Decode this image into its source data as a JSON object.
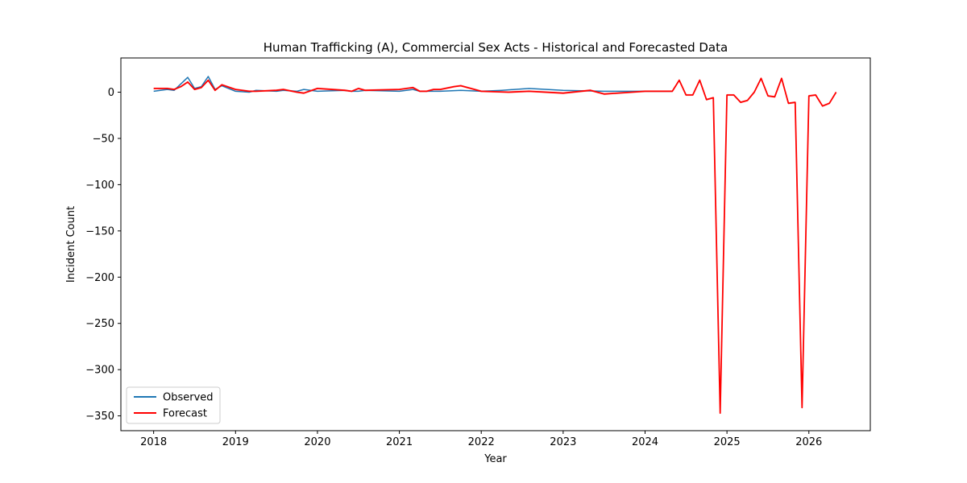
{
  "chart_data": {
    "type": "line",
    "title": "Human Trafficking (A), Commercial Sex Acts - Historical and Forecasted Data",
    "xlabel": "Year",
    "ylabel": "Incident Count",
    "xlim": [
      2017.6,
      2026.75
    ],
    "ylim": [
      -366,
      37
    ],
    "x_ticks": [
      2018,
      2019,
      2020,
      2021,
      2022,
      2023,
      2024,
      2025,
      2026
    ],
    "y_ticks": [
      0,
      -50,
      -100,
      -150,
      -200,
      -250,
      -300,
      -350
    ],
    "y_tick_labels": [
      "0",
      "−50",
      "−100",
      "−150",
      "−200",
      "−250",
      "−300",
      "−350"
    ],
    "legend": {
      "position": "lower-left",
      "entries": [
        "Observed",
        "Forecast"
      ]
    },
    "colors": {
      "observed": "#1f77b4",
      "forecast": "#ff0000",
      "band": "#ffc0c0"
    },
    "series": [
      {
        "name": "Observed",
        "x": [
          2018.0,
          2018.083,
          2018.167,
          2018.25,
          2018.333,
          2018.417,
          2018.5,
          2018.583,
          2018.667,
          2018.75,
          2018.833,
          2019.0,
          2019.167,
          2019.25,
          2019.5,
          2019.583,
          2019.75,
          2019.833,
          2020.0,
          2020.333,
          2020.417,
          2020.5,
          2020.583,
          2021.0,
          2021.167,
          2021.25,
          2021.5,
          2021.75,
          2022.0,
          2022.25,
          2022.583,
          2023.0,
          2023.5,
          2024.0,
          2024.333
        ],
        "values": [
          1,
          2,
          3,
          2,
          9,
          16,
          4,
          6,
          17,
          3,
          7,
          1,
          0,
          2,
          1,
          2,
          1,
          3,
          1,
          2,
          1,
          1,
          2,
          1,
          3,
          1,
          1,
          2,
          1,
          2,
          4,
          2,
          1,
          1,
          1
        ]
      },
      {
        "name": "Forecast",
        "x": [
          2018.0,
          2018.083,
          2018.167,
          2018.25,
          2018.333,
          2018.417,
          2018.5,
          2018.583,
          2018.667,
          2018.75,
          2018.833,
          2019.0,
          2019.167,
          2019.25,
          2019.5,
          2019.583,
          2019.75,
          2019.833,
          2020.0,
          2020.333,
          2020.417,
          2020.5,
          2020.583,
          2021.0,
          2021.167,
          2021.25,
          2021.333,
          2021.417,
          2021.5,
          2021.667,
          2021.75,
          2022.0,
          2022.333,
          2022.583,
          2023.0,
          2023.333,
          2023.5,
          2024.0,
          2024.333,
          2024.417,
          2024.5,
          2024.583,
          2024.667,
          2024.75,
          2024.833,
          2024.917,
          2025.0,
          2025.083,
          2025.167,
          2025.25,
          2025.333,
          2025.417,
          2025.5,
          2025.583,
          2025.667,
          2025.75,
          2025.833,
          2025.917,
          2026.0,
          2026.083,
          2026.167,
          2026.25,
          2026.333
        ],
        "values": [
          4,
          4,
          4,
          3,
          6,
          11,
          3,
          5,
          13,
          2,
          8,
          3,
          1,
          1,
          2,
          3,
          0,
          -1,
          4,
          2,
          1,
          4,
          2,
          3,
          5,
          1,
          1,
          3,
          3,
          6,
          7,
          1,
          0,
          1,
          -1,
          2,
          -2,
          1,
          1,
          13,
          -3,
          -3,
          13,
          -8,
          -6,
          -347,
          -3,
          -3,
          -11,
          -9,
          0,
          15,
          -4,
          -5,
          15,
          -12,
          -11,
          -341,
          -4,
          -3,
          -15,
          -12,
          0
        ]
      }
    ]
  }
}
